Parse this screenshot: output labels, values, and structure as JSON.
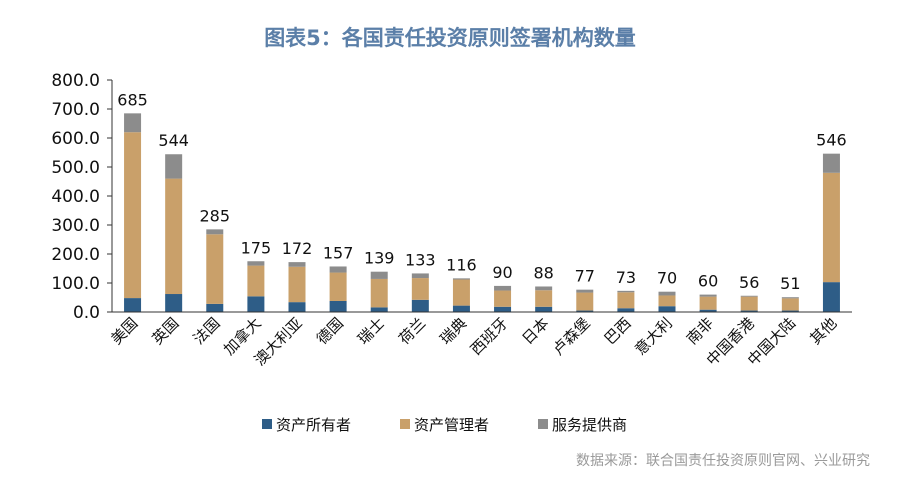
{
  "header": {
    "title": "图表5：各国责任投资原则签署机构数量"
  },
  "footer": {
    "source": "数据来源：联合国责任投资原则官网、兴业研究"
  },
  "chart_data": {
    "type": "bar",
    "stacked": true,
    "title": "图表5：各国责任投资原则签署机构数量",
    "categories": [
      "美国",
      "英国",
      "法国",
      "加拿大",
      "澳大利亚",
      "德国",
      "瑞士",
      "荷兰",
      "瑞典",
      "西班牙",
      "日本",
      "卢森堡",
      "巴西",
      "意大利",
      "南非",
      "中国香港",
      "中国大陆",
      "其他"
    ],
    "totals": [
      685,
      544,
      285,
      175,
      172,
      157,
      139,
      133,
      116,
      90,
      88,
      77,
      73,
      70,
      60,
      56,
      51,
      546
    ],
    "series": [
      {
        "name": "资产所有者",
        "color": "#2e5d87",
        "values": [
          48,
          62,
          28,
          54,
          34,
          38,
          16,
          42,
          22,
          18,
          18,
          5,
          13,
          20,
          8,
          5,
          5,
          103
        ]
      },
      {
        "name": "资产管理者",
        "color": "#c9a06a",
        "values": [
          572,
          398,
          240,
          106,
          122,
          98,
          98,
          75,
          90,
          56,
          57,
          62,
          55,
          37,
          45,
          48,
          42,
          377
        ]
      },
      {
        "name": "服务提供商",
        "color": "#8c8c8c",
        "values": [
          65,
          84,
          17,
          15,
          16,
          21,
          25,
          16,
          4,
          16,
          13,
          10,
          5,
          13,
          7,
          3,
          4,
          66
        ]
      }
    ],
    "yticks": [
      "0.0",
      "100.0",
      "200.0",
      "300.0",
      "400.0",
      "500.0",
      "600.0",
      "700.0",
      "800.0"
    ],
    "ylim": [
      0,
      800
    ],
    "legend": "bottom",
    "grid": false
  }
}
